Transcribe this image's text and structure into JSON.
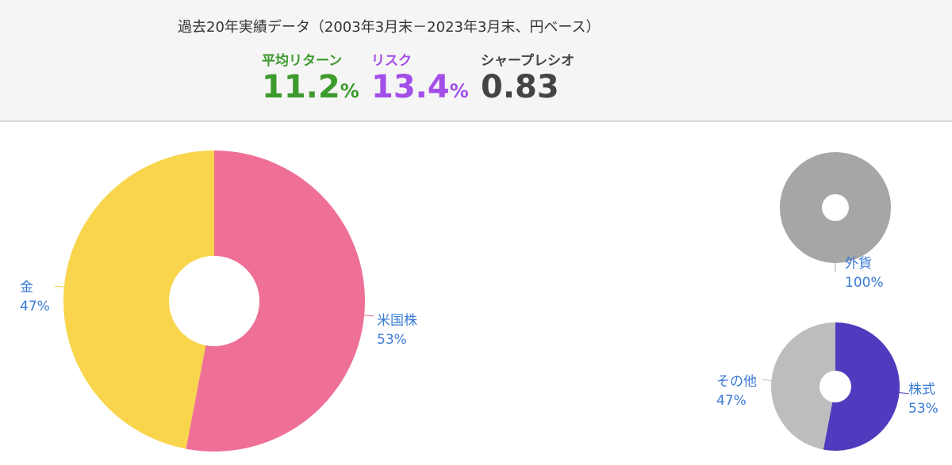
{
  "header": {
    "title": "過去20年実績データ（2003年3月末－2023年3月末、円ベース）",
    "stats": [
      {
        "label": "平均リターン",
        "value": "11.2",
        "unit": "%"
      },
      {
        "label": "リスク",
        "value": "13.4",
        "unit": "%"
      },
      {
        "label": "シャープレシオ",
        "value": "0.83"
      }
    ]
  },
  "chart_data": [
    {
      "type": "pie",
      "categories": [
        "米国株",
        "金"
      ],
      "values": [
        53,
        47
      ],
      "value_labels": [
        "53%",
        "47%"
      ],
      "colors": [
        "#ee7096",
        "#f8d54d"
      ]
    },
    {
      "type": "pie",
      "categories": [
        "外貨"
      ],
      "values": [
        100
      ],
      "value_labels": [
        "100%"
      ],
      "colors": [
        "#a6a6a6"
      ]
    },
    {
      "type": "pie",
      "categories": [
        "株式",
        "その他"
      ],
      "values": [
        53,
        47
      ],
      "value_labels": [
        "53%",
        "47%"
      ],
      "colors": [
        "#4f3bbd",
        "#bdbdbd"
      ]
    }
  ]
}
